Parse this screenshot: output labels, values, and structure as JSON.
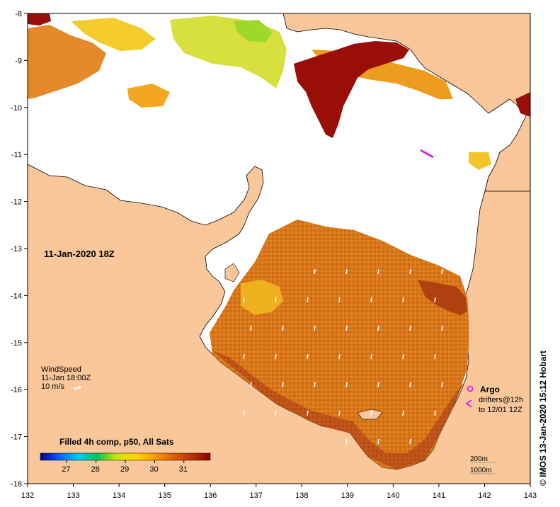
{
  "map": {
    "date_label": "11-Jan-2020 18Z",
    "x_ticks": [
      "132",
      "133",
      "134",
      "135",
      "136",
      "137",
      "138",
      "139",
      "140",
      "141",
      "142",
      "143"
    ],
    "y_ticks": [
      "-8",
      "-9",
      "-10",
      "-11",
      "-12",
      "-13",
      "-14",
      "-15",
      "-16",
      "-17",
      "-18"
    ],
    "lon_range": [
      132,
      143
    ],
    "lat_range": [
      -18,
      -8
    ],
    "colors": {
      "land": "#f9c799",
      "no_data": "#ffffff",
      "coast": "#000000",
      "argo": "#e020e0",
      "wind_arrow": "#ffffff"
    }
  },
  "wind": {
    "title": "WindSpeed",
    "time": "11-Jan 18:00Z",
    "scale_label": "10 m/s"
  },
  "colorbar": {
    "title": "Filled 4h comp, p50, All Sats",
    "ticks": [
      "27",
      "28",
      "29",
      "30",
      "31"
    ],
    "tick_values": [
      27,
      28,
      29,
      30,
      31
    ],
    "range": [
      26.1,
      31.9
    ],
    "stops": [
      "#00008b",
      "#0060ff",
      "#00c8ff",
      "#00c060",
      "#c8e800",
      "#ffd700",
      "#ffa000",
      "#e06000",
      "#c03000",
      "#8b0000"
    ]
  },
  "legend": {
    "argo_label": "Argo",
    "drifters_line1": "drifters@12h",
    "drifters_line2": "to 12/01 12Z"
  },
  "scale": {
    "contour1": "200m",
    "contour2": "1000m"
  },
  "credit": "© IMOS 13-Jan-2020 15:12 Hobart"
}
